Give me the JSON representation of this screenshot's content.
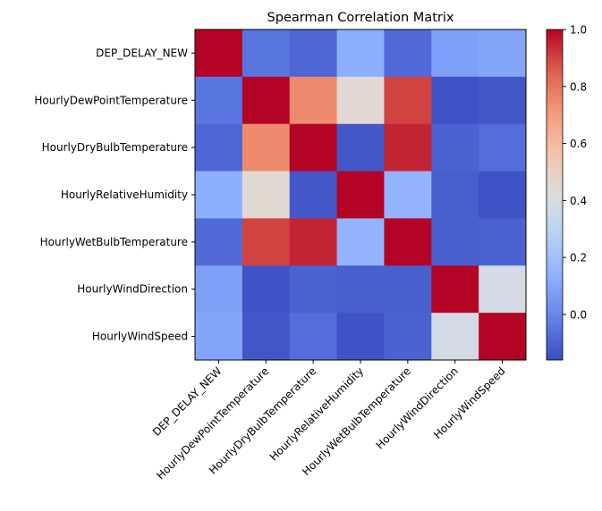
{
  "chart_data": {
    "type": "heatmap",
    "title": "Spearman Correlation Matrix",
    "labels": [
      "DEP_DELAY_NEW",
      "HourlyDewPointTemperature",
      "HourlyDryBulbTemperature",
      "HourlyRelativeHumidity",
      "HourlyWetBulbTemperature",
      "HourlyWindDirection",
      "HourlyWindSpeed"
    ],
    "matrix": [
      [
        1.0,
        -0.05,
        -0.09,
        0.13,
        -0.08,
        0.08,
        0.1
      ],
      [
        -0.05,
        1.0,
        0.75,
        0.45,
        0.9,
        -0.14,
        -0.13
      ],
      [
        -0.09,
        0.75,
        1.0,
        -0.13,
        0.95,
        -0.1,
        -0.07
      ],
      [
        0.13,
        0.45,
        -0.13,
        1.0,
        0.15,
        -0.11,
        -0.14
      ],
      [
        -0.08,
        0.9,
        0.95,
        0.15,
        1.0,
        -0.11,
        -0.1
      ],
      [
        0.08,
        -0.14,
        -0.1,
        -0.11,
        -0.11,
        1.0,
        0.38
      ],
      [
        0.1,
        -0.13,
        -0.07,
        -0.14,
        -0.1,
        0.38,
        1.0
      ]
    ],
    "colormap": "coolwarm",
    "vmin": -0.16,
    "vmax": 1.0,
    "colorbar_ticks": [
      "0.0",
      "0.2",
      "0.4",
      "0.6",
      "0.8",
      "1.0"
    ]
  }
}
